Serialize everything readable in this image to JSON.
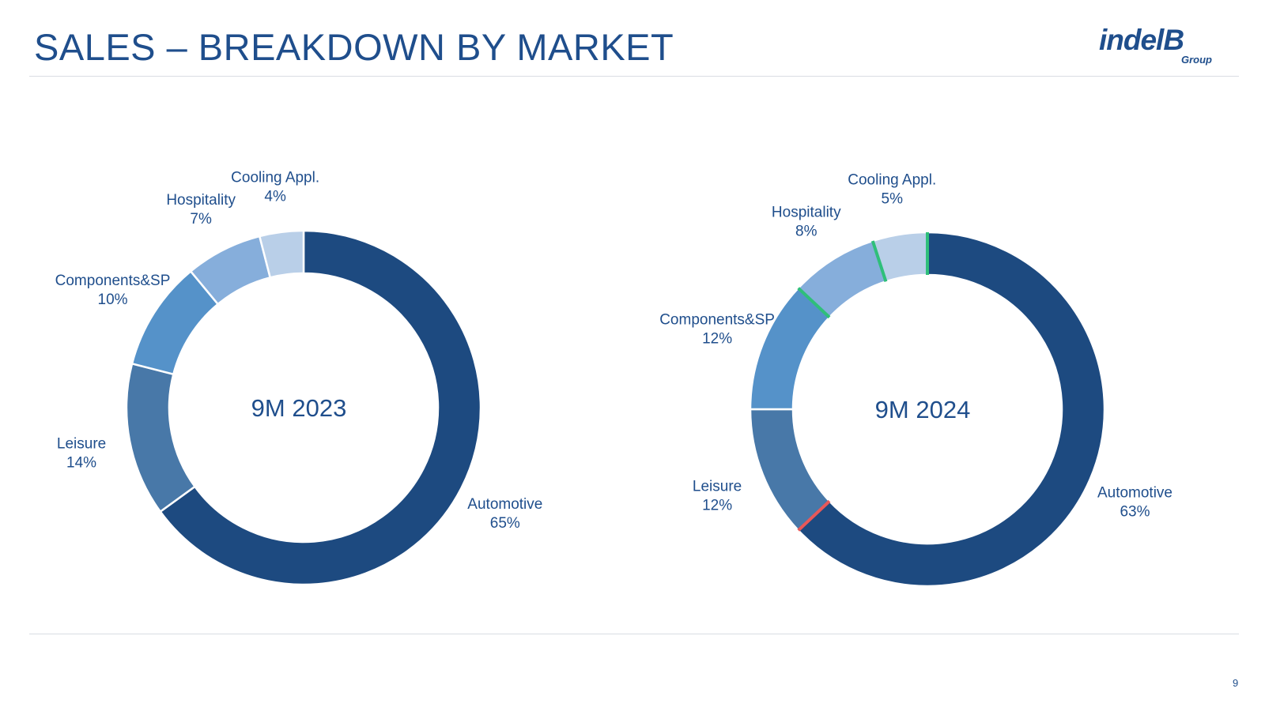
{
  "header": {
    "title": "SALES – BREAKDOWN BY MARKET",
    "logo_main": "indelB",
    "logo_sub": "Group"
  },
  "footer": {
    "page_number": "9"
  },
  "colors": {
    "automotive": "#1d4a80",
    "leisure": "#4878a8",
    "components": "#5592c9",
    "hospitality": "#86aedb",
    "cooling": "#b9cfe8",
    "separator_green": "#2fbf7a",
    "separator_red": "#e85858"
  },
  "chart_data": [
    {
      "type": "pie",
      "title": "9M 2023",
      "slices": [
        {
          "name": "Automotive",
          "value": 65,
          "label": "65%",
          "color": "#1d4a80"
        },
        {
          "name": "Leisure",
          "value": 14,
          "label": "14%",
          "color": "#4878a8"
        },
        {
          "name": "Components&SP",
          "value": 10,
          "label": "10%",
          "color": "#5592c9"
        },
        {
          "name": "Hospitality",
          "value": 7,
          "label": "7%",
          "color": "#86aedb"
        },
        {
          "name": "Cooling Appl.",
          "value": 4,
          "label": "4%",
          "color": "#b9cfe8"
        }
      ]
    },
    {
      "type": "pie",
      "title": "9M 2024",
      "slices": [
        {
          "name": "Automotive",
          "value": 63,
          "label": "63%",
          "color": "#1d4a80"
        },
        {
          "name": "Leisure",
          "value": 12,
          "label": "12%",
          "color": "#4878a8"
        },
        {
          "name": "Components&SP",
          "value": 12,
          "label": "12%",
          "color": "#5592c9"
        },
        {
          "name": "Hospitality",
          "value": 8,
          "label": "8%",
          "color": "#86aedb"
        },
        {
          "name": "Cooling Appl.",
          "value": 5,
          "label": "5%",
          "color": "#b9cfe8"
        }
      ]
    }
  ]
}
